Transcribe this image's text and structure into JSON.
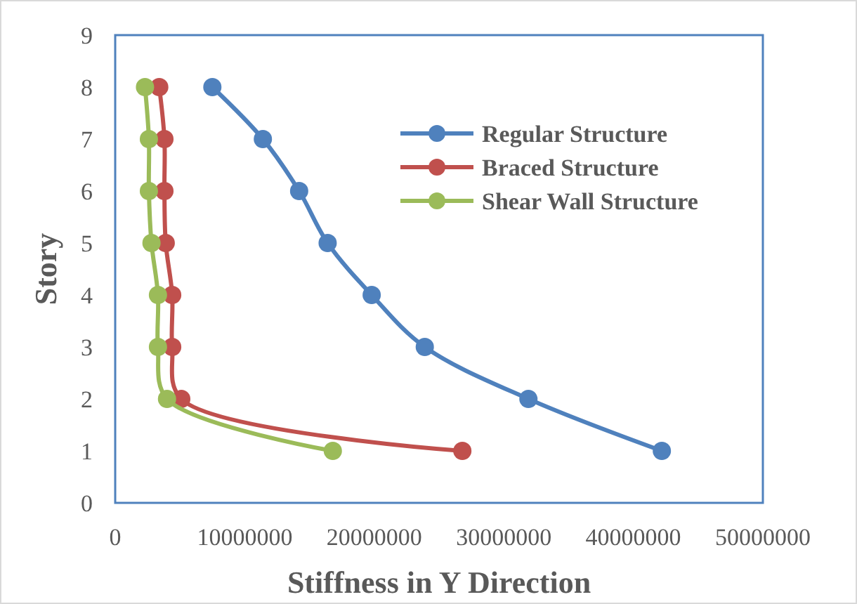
{
  "chart_data": {
    "type": "line",
    "xlabel": "Stiffness in Y Direction",
    "ylabel": "Story",
    "xlim": [
      0,
      50000000
    ],
    "xticks": [
      0,
      10000000,
      20000000,
      30000000,
      40000000,
      50000000
    ],
    "ylim": [
      0,
      9
    ],
    "yticks": [
      0,
      1,
      2,
      3,
      4,
      5,
      6,
      7,
      8,
      9
    ],
    "grid": false,
    "legend": "right",
    "marker": "circle",
    "line_style": "solid",
    "series": [
      {
        "name": "Regular Structure",
        "color": "#4f81bd",
        "x": [
          7500000,
          11400000,
          14200000,
          16400000,
          19800000,
          23900000,
          31900000,
          42200000
        ],
        "values": [
          8,
          7,
          6,
          5,
          4,
          3,
          2,
          1
        ]
      },
      {
        "name": "Braced Structure",
        "color": "#c0504d",
        "x": [
          3400000,
          3800000,
          3800000,
          3900000,
          4400000,
          4400000,
          5100000,
          26800000
        ],
        "values": [
          8,
          7,
          6,
          5,
          4,
          3,
          2,
          1
        ]
      },
      {
        "name": "Shear Wall Structure",
        "color": "#9bbb59",
        "x": [
          2300000,
          2600000,
          2600000,
          2800000,
          3300000,
          3300000,
          4000000,
          16800000
        ],
        "values": [
          8,
          7,
          6,
          5,
          4,
          3,
          2,
          1
        ]
      }
    ]
  }
}
